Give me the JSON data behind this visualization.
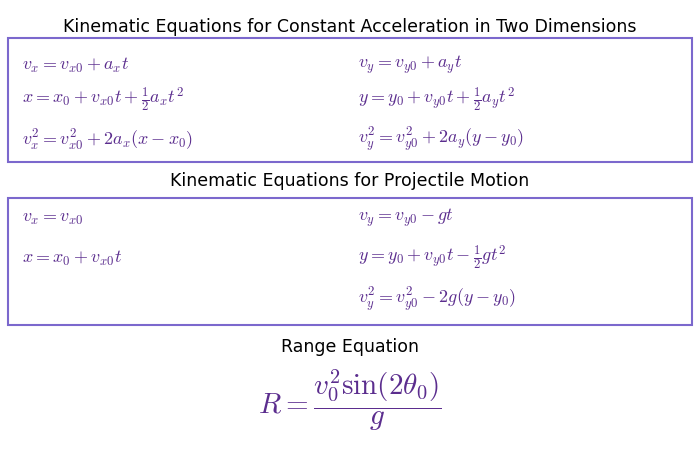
{
  "bg_color": "#ffffff",
  "title1": "Kinematic Equations for Constant Acceleration in Two Dimensions",
  "title2": "Kinematic Equations for Projectile Motion",
  "title3": "Range Equation",
  "title_color": "#000000",
  "eq_color": "#5B2D8E",
  "box_edge_color": "#7B68CD",
  "title_fontsize": 12.5,
  "eq_fontsize": 13,
  "box1_left_eqs": [
    "$v_x = v_{x0} + a_x t$",
    "$x = x_0 + v_{x0}t + \\frac{1}{2}a_x t^2$",
    "$v_x^2 = v_{x0}^2 + 2a_x(x - x_0)$"
  ],
  "box1_right_eqs": [
    "$v_y = v_{y0} + a_y t$",
    "$y = y_0 + v_{y0}t + \\frac{1}{2}a_y t^2$",
    "$v_y^2 = v_{y0}^2 + 2a_y(y - y_0)$"
  ],
  "box2_left_eqs": [
    "$v_x = v_{x0}$",
    "$x = x_0 + v_{x0}t$"
  ],
  "box2_right_eqs": [
    "$v_y = v_{y0} - gt$",
    "$y = y_0 + v_{y0}t - \\frac{1}{2}gt^2$",
    "$v_y^2 = v_{y0}^2 - 2g(y - y_0)$"
  ],
  "range_eq": "$R = \\dfrac{v_0^2 \\sin(2\\theta_0)}{g}$"
}
